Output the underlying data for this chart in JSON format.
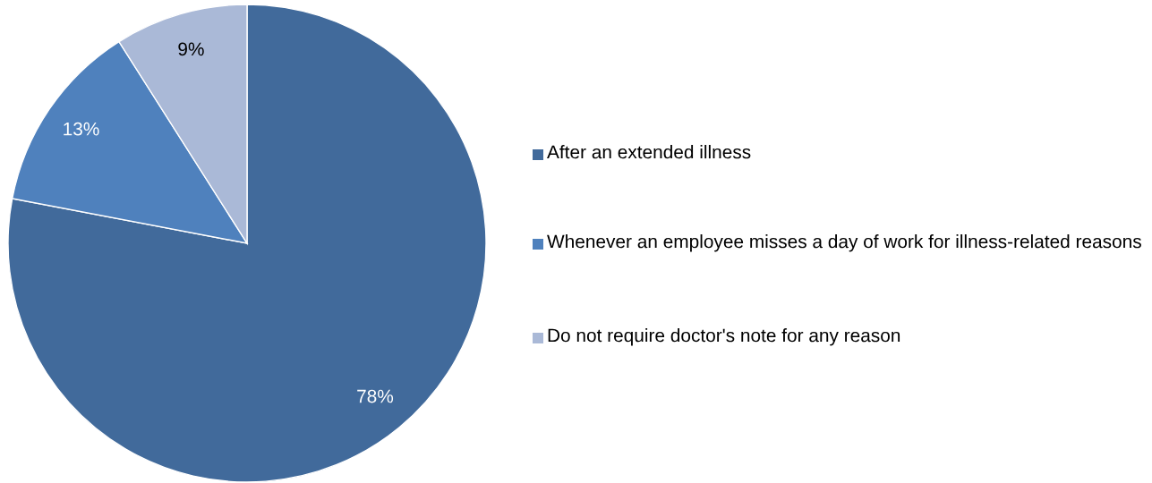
{
  "chart_data": {
    "type": "pie",
    "categories": [
      "After an extended illness",
      "Whenever an employee misses a day of work for illness-related reasons",
      "Do not require doctor's note for any reason"
    ],
    "values": [
      78,
      13,
      9
    ],
    "colors": [
      "#416a9b",
      "#4f81bd",
      "#aab9d7"
    ],
    "value_labels": [
      "78%",
      "13%",
      "9%"
    ],
    "legend": "right"
  }
}
